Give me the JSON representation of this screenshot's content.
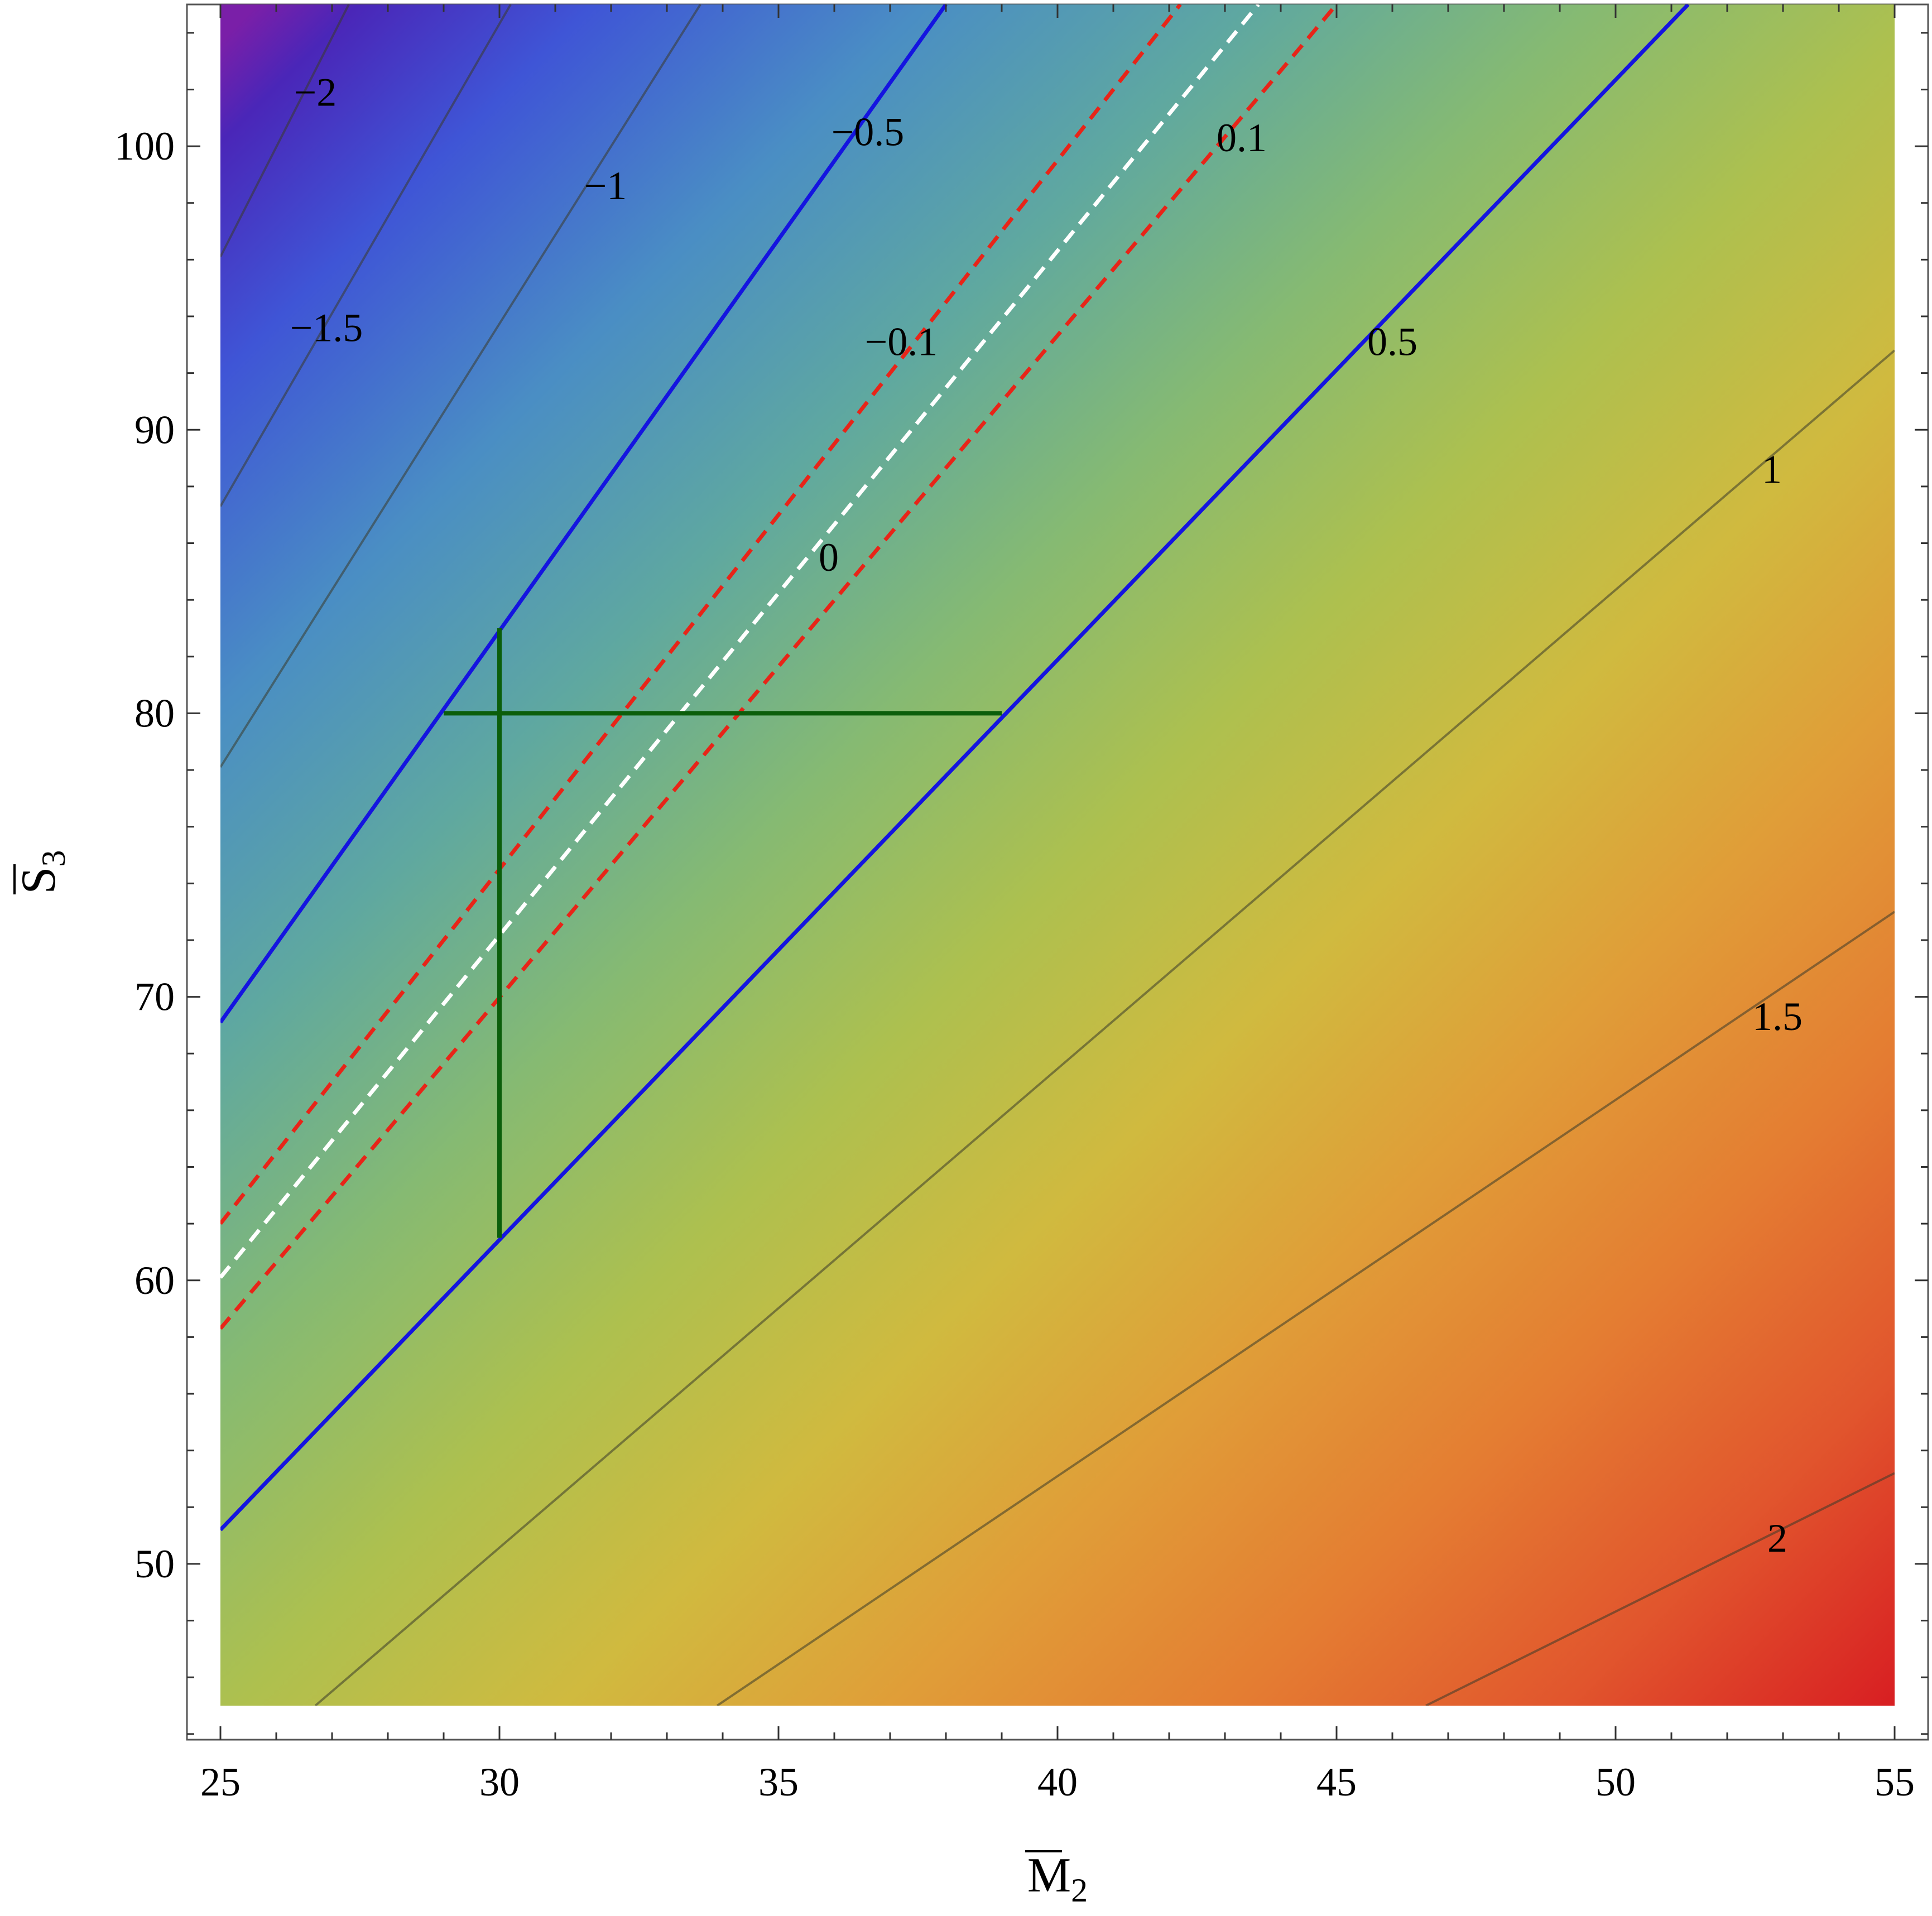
{
  "chart_data": {
    "type": "contour",
    "title": "",
    "xlabel": "M",
    "xlabel_subscript": "2",
    "ylabel": "S",
    "ylabel_subscript": "3",
    "xlim": [
      24.4,
      55.6
    ],
    "ylim": [
      43.8,
      105
    ],
    "data_region": {
      "x": [
        25,
        55
      ],
      "y": [
        45,
        105
      ]
    },
    "x_ticks": [
      25,
      30,
      35,
      40,
      45,
      50,
      55
    ],
    "y_ticks": [
      50,
      60,
      70,
      80,
      90,
      100
    ],
    "x_tick_labels": [
      "25",
      "30",
      "35",
      "40",
      "45",
      "50",
      "55"
    ],
    "y_tick_labels": [
      "50",
      "60",
      "70",
      "80",
      "90",
      "100"
    ],
    "grid": false,
    "colormap": "purple-blue-green-yellow-orange-red",
    "colors": {
      "contour_line": "#3a3a2a",
      "blue_contour": "#1414e0",
      "red_dashed": "#e82418",
      "white_dashed": "#ffffff",
      "green_bars": "#0b5e0b"
    },
    "contours": [
      {
        "level": -2,
        "label": "−2",
        "style": "thin",
        "points": [
          [
            25,
            96.1
          ],
          [
            27.3,
            105
          ]
        ],
        "label_at": [
          26.7,
          101.9
        ]
      },
      {
        "level": -1.5,
        "label": "−1.5",
        "style": "thin",
        "points": [
          [
            25,
            87.3
          ],
          [
            30.2,
            105
          ]
        ],
        "label_at": [
          26.9,
          93.6
        ]
      },
      {
        "level": -1,
        "label": "−1",
        "style": "thin",
        "points": [
          [
            25,
            78.1
          ],
          [
            33.6,
            105
          ]
        ],
        "label_at": [
          31.9,
          98.6
        ]
      },
      {
        "level": -0.5,
        "label": "−0.5",
        "style": "blue",
        "points": [
          [
            25,
            69.1
          ],
          [
            38,
            105
          ]
        ],
        "label_at": [
          36.6,
          100.5
        ]
      },
      {
        "level": -0.1,
        "label": "−0.1",
        "style": "red-dashed",
        "points": [
          [
            25,
            62
          ],
          [
            42.2,
            105
          ]
        ],
        "label_at": [
          37.2,
          93.1
        ]
      },
      {
        "level": 0,
        "label": "0",
        "style": "white-dashed",
        "points": [
          [
            25,
            60.1
          ],
          [
            43.6,
            105
          ]
        ],
        "label_at": [
          35.9,
          85.5
        ]
      },
      {
        "level": 0.1,
        "label": "0.1",
        "style": "red-dashed",
        "points": [
          [
            25,
            58.3
          ],
          [
            45,
            105
          ]
        ],
        "label_at": [
          43.3,
          100.3
        ]
      },
      {
        "level": 0.5,
        "label": "0.5",
        "style": "blue",
        "points": [
          [
            25,
            51.2
          ],
          [
            51.3,
            105
          ]
        ],
        "label_at": [
          46,
          93.1
        ]
      },
      {
        "level": 1,
        "label": "1",
        "style": "thin",
        "points": [
          [
            26.7,
            45
          ],
          [
            55,
            92.8
          ]
        ],
        "label_at": [
          52.8,
          88.6
        ]
      },
      {
        "level": 1.5,
        "label": "1.5",
        "style": "thin",
        "points": [
          [
            33.9,
            45
          ],
          [
            55,
            73
          ]
        ],
        "label_at": [
          52.9,
          69.3
        ]
      },
      {
        "level": 2,
        "label": "2",
        "style": "thin",
        "points": [
          [
            46.6,
            45
          ],
          [
            55,
            53.2
          ]
        ],
        "label_at": [
          52.9,
          50.9
        ]
      }
    ],
    "error_bars": {
      "center": [
        30,
        80
      ],
      "horizontal": [
        29,
        39
      ],
      "vertical": [
        61.5,
        83
      ]
    }
  }
}
